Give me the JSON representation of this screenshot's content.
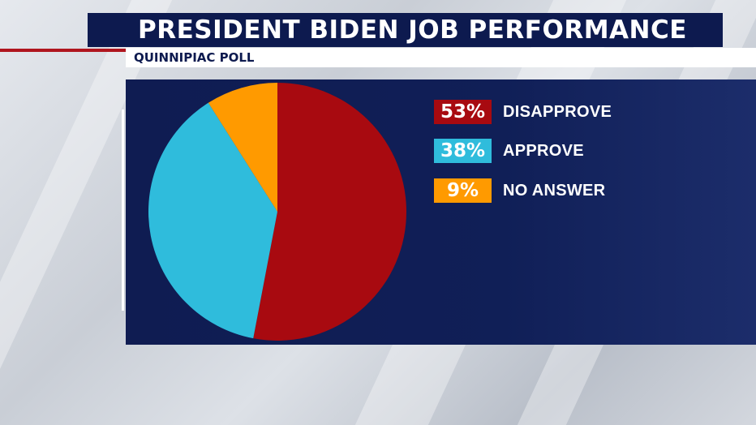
{
  "header": {
    "title": "PRESIDENT BIDEN JOB PERFORMANCE",
    "subtitle": "QUINNIPIAC POLL"
  },
  "colors": {
    "disapprove": "#a80a10",
    "approve": "#2fbcdc",
    "no_answer": "#ff9a00",
    "panel": "#0f1c52",
    "title_bar": "#0d1a4f"
  },
  "chart_data": {
    "type": "pie",
    "slices": [
      {
        "label": "DISAPPROVE",
        "value": 53,
        "display": "53%",
        "color": "#a80a10"
      },
      {
        "label": "APPROVE",
        "value": 38,
        "display": "38%",
        "color": "#2fbcdc"
      },
      {
        "label": "NO ANSWER",
        "value": 9,
        "display": "9%",
        "color": "#ff9a00"
      }
    ],
    "start": "top, clockwise",
    "legend_position": "right"
  }
}
